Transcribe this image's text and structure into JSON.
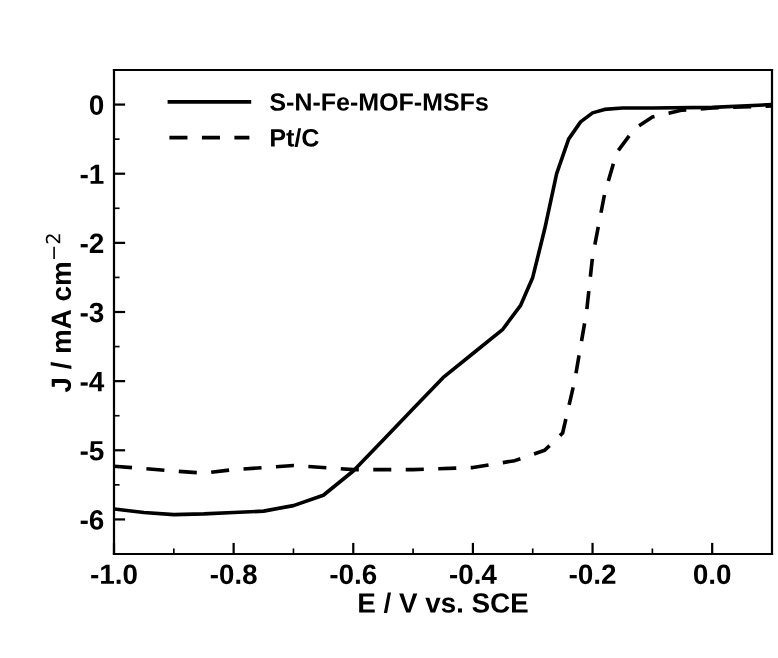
{
  "chart_data": {
    "type": "line",
    "xlabel": "E / V vs. SCE",
    "ylabel": "J / mA cm$^{−2}$",
    "xlim": [
      -1.0,
      0.1
    ],
    "ylim": [
      -6.5,
      0.5
    ],
    "xticks": [
      {
        "value": -1.0,
        "label": "-1.0"
      },
      {
        "value": -0.8,
        "label": "-0.8"
      },
      {
        "value": -0.6,
        "label": "-0.6"
      },
      {
        "value": -0.4,
        "label": "-0.4"
      },
      {
        "value": -0.2,
        "label": "-0.2"
      },
      {
        "value": 0.0,
        "label": "0.0"
      }
    ],
    "yticks": [
      {
        "value": 0,
        "label": "0"
      },
      {
        "value": -1,
        "label": "-1"
      },
      {
        "value": -2,
        "label": "-2"
      },
      {
        "value": -3,
        "label": "-3"
      },
      {
        "value": -4,
        "label": "-4"
      },
      {
        "value": -5,
        "label": "-5"
      },
      {
        "value": -6,
        "label": "-6"
      }
    ],
    "grid": false,
    "legend": "top left",
    "series": [
      {
        "name": "S-N-Fe-MOF-MSFs",
        "color": "#000000",
        "line_style": "solid",
        "x": [
          -1.0,
          -0.95,
          -0.9,
          -0.85,
          -0.8,
          -0.75,
          -0.7,
          -0.65,
          -0.6,
          -0.55,
          -0.5,
          -0.45,
          -0.4,
          -0.35,
          -0.32,
          -0.3,
          -0.28,
          -0.26,
          -0.24,
          -0.22,
          -0.2,
          -0.18,
          -0.15,
          -0.1,
          0.0,
          0.1
        ],
        "values": [
          -5.85,
          -5.9,
          -5.93,
          -5.92,
          -5.9,
          -5.88,
          -5.8,
          -5.65,
          -5.3,
          -4.85,
          -4.4,
          -3.95,
          -3.6,
          -3.25,
          -2.9,
          -2.5,
          -1.8,
          -1.0,
          -0.5,
          -0.25,
          -0.12,
          -0.07,
          -0.05,
          -0.05,
          -0.04,
          0.0
        ]
      },
      {
        "name": "Pt/C",
        "color": "#000000",
        "line_style": "dashed",
        "x": [
          -1.0,
          -0.9,
          -0.85,
          -0.8,
          -0.7,
          -0.6,
          -0.5,
          -0.4,
          -0.33,
          -0.28,
          -0.25,
          -0.23,
          -0.21,
          -0.2,
          -0.18,
          -0.16,
          -0.13,
          -0.1,
          -0.05,
          0.0,
          0.1
        ],
        "values": [
          -5.23,
          -5.3,
          -5.33,
          -5.28,
          -5.22,
          -5.28,
          -5.28,
          -5.25,
          -5.15,
          -5.0,
          -4.75,
          -4.0,
          -3.0,
          -2.2,
          -1.3,
          -0.7,
          -0.35,
          -0.18,
          -0.08,
          -0.05,
          -0.02
        ]
      }
    ]
  }
}
